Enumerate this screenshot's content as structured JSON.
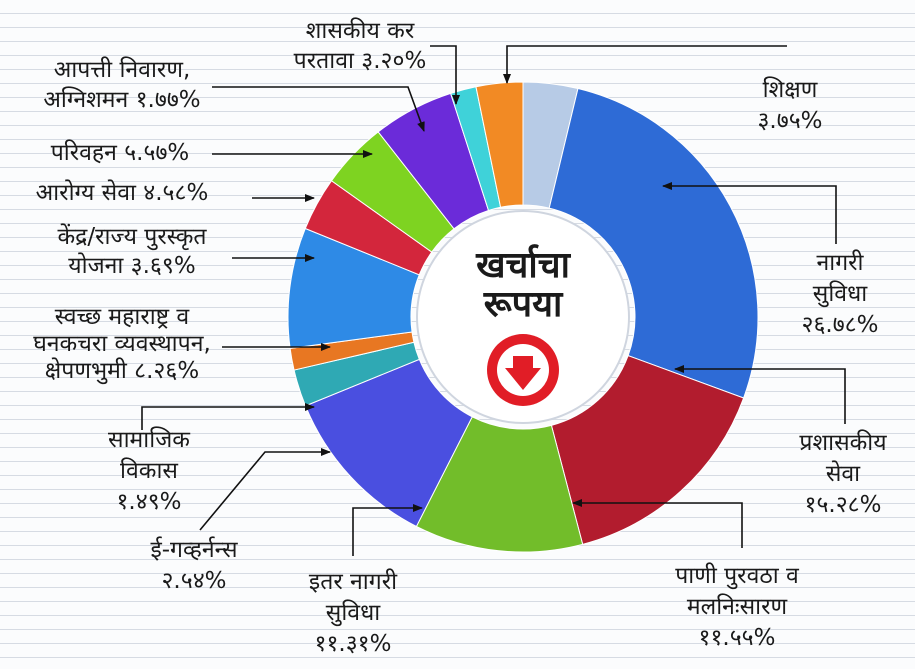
{
  "chart_data": {
    "type": "pie",
    "variant": "donut",
    "center_title": [
      "खर्चाचा",
      "रूपया"
    ],
    "center_icon": "down-arrow-circle-icon",
    "slices": [
      {
        "label_lines": [
          "शिक्षण",
          "३.७५%"
        ],
        "value": 3.75,
        "color": "#b7cbe6"
      },
      {
        "label_lines": [
          "नागरी",
          "सुविधा",
          "२६.७८%"
        ],
        "value": 26.78,
        "color": "#2e6bd6"
      },
      {
        "label_lines": [
          "प्रशासकीय",
          "सेवा",
          "१५.२८%"
        ],
        "value": 15.28,
        "color": "#b21c2e"
      },
      {
        "label_lines": [
          "पाणी पुरवठा व",
          "मलनिःसारण",
          "११.५५%"
        ],
        "value": 11.55,
        "color": "#72bd2a"
      },
      {
        "label_lines": [
          "इतर नागरी",
          "सुविधा",
          "११.३१%"
        ],
        "value": 11.31,
        "color": "#4a4fe0"
      },
      {
        "label_lines": [
          "ई-गव्हर्नन्स",
          "२.५४%"
        ],
        "value": 2.54,
        "color": "#2fa9b4"
      },
      {
        "label_lines": [
          "सामाजिक",
          "विकास",
          "१.४९%"
        ],
        "value": 1.49,
        "color": "#e87722"
      },
      {
        "label_lines": [
          "स्वच्छ महाराष्ट्र व",
          "घनकचरा व्यवस्थापन,",
          "क्षेपणभुमी ८.२६%"
        ],
        "value": 8.26,
        "color": "#2e8ae6"
      },
      {
        "label_lines": [
          "केंद्र/राज्य पुरस्कृत",
          "योजना ३.६९%"
        ],
        "value": 3.69,
        "color": "#d3263c"
      },
      {
        "label_lines": [
          "आरोग्य सेवा ४.५८%"
        ],
        "value": 4.58,
        "color": "#7ed321"
      },
      {
        "label_lines": [
          "परिवहन ५.५७%"
        ],
        "value": 5.57,
        "color": "#6b2bd9"
      },
      {
        "label_lines": [
          "आपत्ती निवारण,",
          "अग्निशमन १.७७%"
        ],
        "value": 1.77,
        "color": "#3fd2d9"
      },
      {
        "label_lines": [
          "शासकीय कर",
          "परतावा ३.२०%"
        ],
        "value": 3.2,
        "color": "#f28a24"
      }
    ]
  }
}
